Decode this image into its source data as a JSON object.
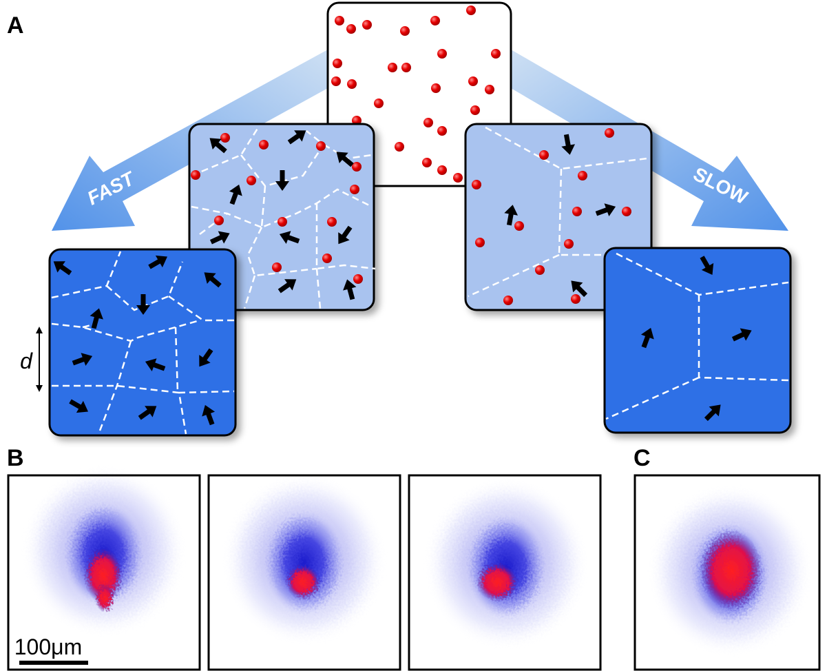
{
  "panel_a": {
    "label": "A",
    "fast_label": "FAST",
    "slow_label": "SLOW",
    "dimension_label": "d"
  },
  "panel_b": {
    "label": "B",
    "scale_bar_label": "100μm"
  },
  "panel_c": {
    "label": "C"
  }
}
